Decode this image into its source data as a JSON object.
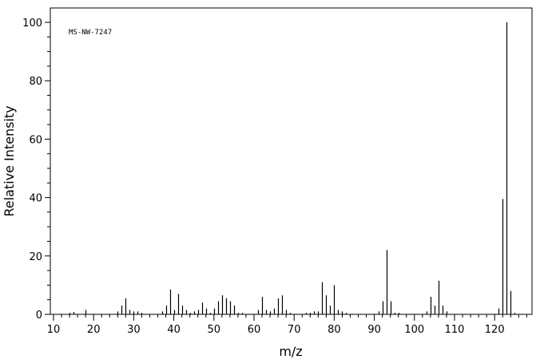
{
  "chart_data": {
    "type": "bar",
    "annotation": "MS-NW-7247",
    "xlabel": "m/z",
    "ylabel": "Relative Intensity",
    "xlim": [
      10,
      130
    ],
    "ylim": [
      0,
      105
    ],
    "x_ticks": [
      10,
      20,
      30,
      40,
      50,
      60,
      70,
      80,
      90,
      100,
      110,
      120
    ],
    "y_ticks": [
      0,
      20,
      40,
      60,
      80,
      100
    ],
    "grid": false,
    "series": [
      {
        "x": [
          14,
          15,
          18,
          26,
          27,
          28,
          29,
          30,
          31,
          32,
          37,
          38,
          39,
          40,
          41,
          42,
          43,
          44,
          45,
          46,
          47,
          48,
          49,
          50,
          51,
          52,
          53,
          54,
          55,
          56,
          57,
          61,
          62,
          63,
          64,
          65,
          66,
          67,
          68,
          69,
          73,
          74,
          75,
          76,
          77,
          78,
          79,
          80,
          81,
          82,
          83,
          91,
          92,
          93,
          94,
          95,
          96,
          103,
          104,
          105,
          106,
          107,
          108,
          121,
          122,
          123,
          124,
          125
        ],
        "values": [
          0.5,
          0.8,
          1.5,
          1.0,
          3.0,
          5.5,
          1.5,
          1.0,
          1.0,
          0.5,
          1.0,
          3.0,
          8.5,
          1.5,
          7.0,
          3.0,
          1.5,
          0.5,
          1.0,
          1.5,
          4.0,
          2.0,
          0.5,
          2.0,
          4.5,
          6.5,
          5.5,
          4.5,
          3.0,
          0.5,
          0.5,
          1.5,
          6.0,
          1.5,
          1.0,
          2.0,
          5.5,
          6.5,
          1.5,
          0.5,
          0.5,
          0.5,
          1.0,
          1.0,
          11.0,
          6.5,
          3.0,
          10.0,
          1.5,
          1.0,
          0.5,
          1.0,
          4.5,
          22.0,
          4.5,
          0.5,
          0.5,
          1.0,
          6.0,
          3.0,
          11.5,
          3.0,
          1.0,
          2.0,
          39.5,
          100.0,
          8.0,
          0.5
        ]
      }
    ]
  }
}
